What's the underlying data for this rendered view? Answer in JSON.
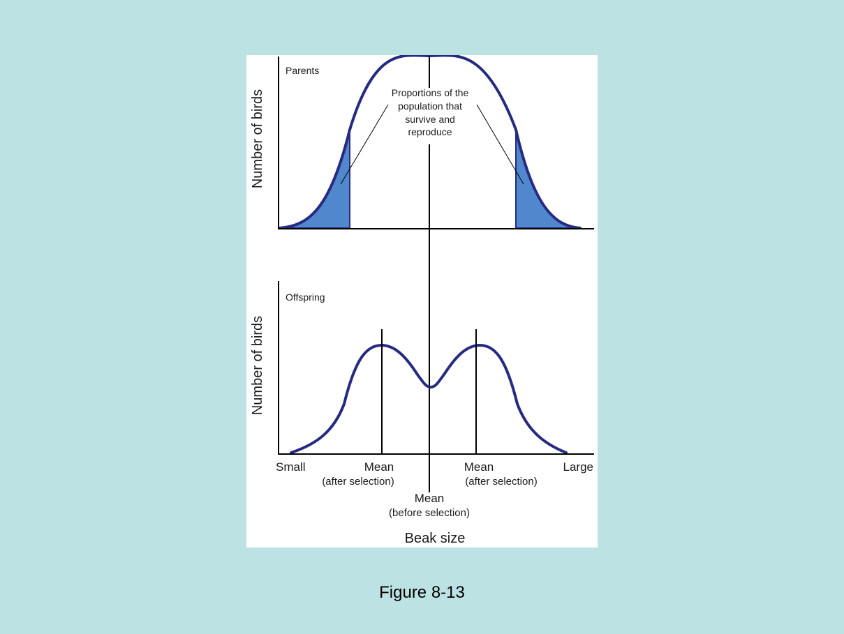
{
  "upper_panel": {
    "label": "Parents",
    "ylabel": "Number of birds",
    "annotation": [
      "Proportions of the",
      "population that",
      "survive and",
      "reproduce"
    ]
  },
  "lower_panel": {
    "label": "Offspring",
    "ylabel": "Number of birds"
  },
  "x_axis": {
    "xlabel": "Beak size",
    "small_label": "Small",
    "large_label": "Large",
    "mean_left": {
      "label": "Mean",
      "sublabel": "(after selection)"
    },
    "mean_right": {
      "label": "Mean",
      "sublabel": "(after selection)"
    },
    "mean_center": {
      "label": "Mean",
      "sublabel": "(before selection)"
    }
  },
  "caption": "Figure 8-13",
  "colors": {
    "background": "#bde2e4",
    "curve": "#262a80",
    "tail_fill": "#5187cc"
  }
}
